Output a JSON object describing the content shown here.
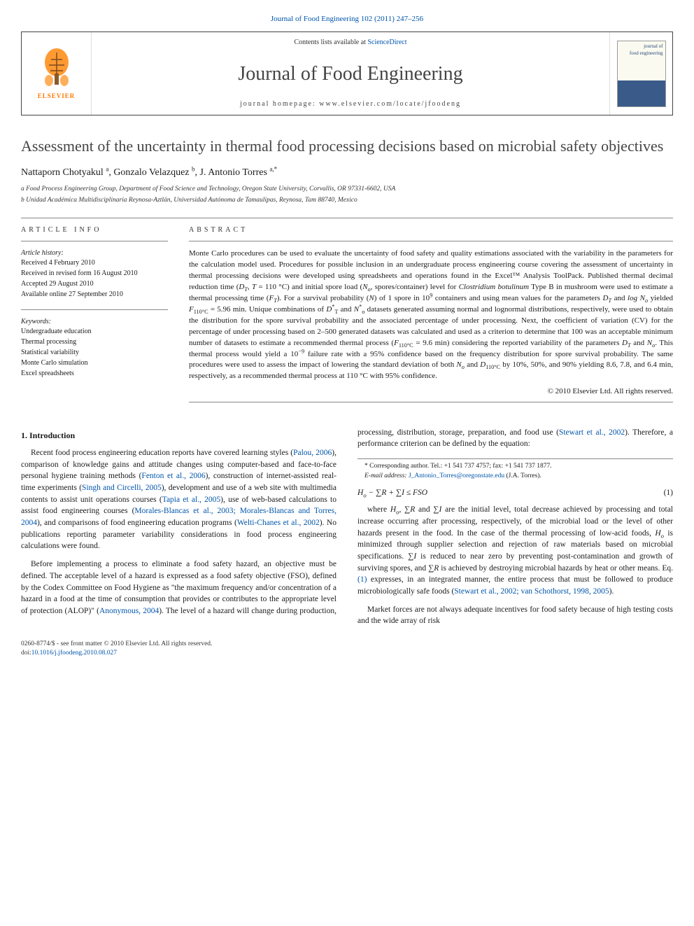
{
  "top_citation": "Journal of Food Engineering 102 (2011) 247–256",
  "header": {
    "contents_prefix": "Contents lists available at ",
    "contents_link": "ScienceDirect",
    "journal_name": "Journal of Food Engineering",
    "homepage_prefix": "journal homepage: ",
    "homepage_url": "www.elsevier.com/locate/jfoodeng",
    "publisher": "ELSEVIER",
    "cover_text": "journal of\nfood engineering"
  },
  "article": {
    "title": "Assessment of the uncertainty in thermal food processing decisions based on microbial safety objectives",
    "authors_html": "Nattaporn Chotyakul <sup>a</sup>, Gonzalo Velazquez <sup>b</sup>, J. Antonio Torres <sup>a,*</sup>",
    "affiliations": [
      "a Food Process Engineering Group, Department of Food Science and Technology, Oregon State University, Corvallis, OR 97331-6602, USA",
      "b Unidad Académica Multidisciplinaria Reynosa-Aztlán, Universidad Autónoma de Tamaulipas, Reynosa, Tam 88740, Mexico"
    ]
  },
  "info": {
    "heading": "article info",
    "history_label": "Article history:",
    "history": [
      "Received 4 February 2010",
      "Received in revised form 16 August 2010",
      "Accepted 29 August 2010",
      "Available online 27 September 2010"
    ],
    "keywords_label": "Keywords:",
    "keywords": [
      "Undergraduate education",
      "Thermal processing",
      "Statistical variability",
      "Monte Carlo simulation",
      "Excel spreadsheets"
    ]
  },
  "abstract": {
    "heading": "abstract",
    "text_html": "Monte Carlo procedures can be used to evaluate the uncertainty of food safety and quality estimations associated with the variability in the parameters for the calculation model used. Procedures for possible inclusion in an undergraduate process engineering course covering the assessment of uncertainty in thermal processing decisions were developed using spreadsheets and operations found in the Excel™ Analysis ToolPack. Published thermal decimal reduction time (<i>D<sub>T</sub></i>, <i>T</i> = 110 °C) and initial spore load (<i>N<sub>o</sub></i>, spores/container) level for <i>Clostridium botulinum</i> Type B in mushroom were used to estimate a thermal processing time (<i>F<sub>T</sub></i>). For a survival probability (<i>N</i>) of 1 spore in 10<sup>9</sup> containers and using mean values for the parameters <i>D<sub>T</sub></i> and <i>log N<sub>o</sub></i> yielded <i>F</i><sub>110°C</sub> = 5.96 min. Unique combinations of <i>D</i><sup>*</sup><sub>T</sub> and <i>N</i><sup>*</sup><sub>o</sub> datasets generated assuming normal and lognormal distributions, respectively, were used to obtain the distribution for the spore survival probability and the associated percentage of under processing. Next, the coefficient of variation (CV) for the percentage of under processing based on 2–500 generated datasets was calculated and used as a criterion to determine that 100 was an acceptable minimum number of datasets to estimate a recommended thermal process (<i>F</i><sub>110°C</sub> = 9.6 min) considering the reported variability of the parameters <i>D<sub>T</sub></i> and <i>N<sub>o</sub></i>. This thermal process would yield a 10<sup>−9</sup> failure rate with a 95% confidence based on the frequency distribution for spore survival probability. The same procedures were used to assess the impact of lowering the standard deviation of both <i>N<sub>o</sub></i> and <i>D</i><sub>110°C</sub> by 10%, 50%, and 90% yielding 8.6, 7.8, and 6.4 min, respectively, as a recommended thermal process at 110 °C with 95% confidence.",
    "copyright": "© 2010 Elsevier Ltd. All rights reserved."
  },
  "body": {
    "section1_heading": "1. Introduction",
    "p1_html": "Recent food process engineering education reports have covered learning styles (<a>Palou, 2006</a>), comparison of knowledge gains and attitude changes using computer-based and face-to-face personal hygiene training methods (<a>Fenton et al., 2006</a>), construction of internet-assisted real-time experiments (<a>Singh and Circelli, 2005</a>), development and use of a web site with multimedia contents to assist unit operations courses (<a>Tapia et al., 2005</a>), use of web-based calculations to assist food engineering courses (<a>Morales-Blancas et al., 2003; Morales-Blancas and Torres, 2004</a>), and comparisons of food engineering education programs (<a>Welti-Chanes et al., 2002</a>). No publications reporting parameter variability considerations in food process engineering calculations were found.",
    "p2_html": "Before implementing a process to eliminate a food safety hazard, an objective must be defined. The acceptable level of a hazard is expressed as a food safety objective (FSO), defined by the Codex Committee on Food Hygiene as \"the maximum frequency and/or concentration of a hazard in a food at the time of consumption that provides or contributes to the appropriate level of protection (ALOP)\" (<a>Anonymous, 2004</a>). The level of a hazard will change during production, processing, distribution, storage, preparation, and food use (<a>Stewart et al., 2002</a>). Therefore, a performance criterion can be defined by the equation:",
    "equation_html": "<i>H<sub>o</sub></i> − ∑<i>R</i> + ∑<i>I</i> ≤ <i>FSO</i>",
    "equation_num": "(1)",
    "p3_html": "where <i>H<sub>o</sub></i>, ∑<i>R</i> and ∑<i>I</i> are the initial level, total decrease achieved by processing and total increase occurring after processing, respectively, of the microbial load or the level of other hazards present in the food. In the case of the thermal processing of low-acid foods, <i>H<sub>o</sub></i> is minimized through supplier selection and rejection of raw materials based on microbial specifications. ∑<i>I</i> is reduced to near zero by preventing post-contamination and growth of surviving spores, and ∑<i>R</i> is achieved by destroying microbial hazards by heat or other means. Eq. <a>(1)</a> expresses, in an integrated manner, the entire process that must be followed to produce microbiologically safe foods (<a>Stewart et al., 2002; van Schothorst, 1998, 2005</a>).",
    "p4": "Market forces are not always adequate incentives for food safety because of high testing costs and the wide array of risk"
  },
  "footnote": {
    "corr_html": "* Corresponding author. Tel.: +1 541 737 4757; fax: +1 541 737 1877.",
    "email_label": "E-mail address: ",
    "email": "J_Antonio_Torres@oregonstate.edu",
    "email_suffix": " (J.A. Torres)."
  },
  "footer": {
    "left_line1": "0260-8774/$ - see front matter © 2010 Elsevier Ltd. All rights reserved.",
    "doi_prefix": "doi:",
    "doi": "10.1016/j.jfoodeng.2010.08.027"
  },
  "colors": {
    "link": "#0055aa",
    "elsevier_orange": "#ff7800",
    "text": "#1a1a1a",
    "rule": "#888888"
  },
  "typography": {
    "body_pt": 11.5,
    "title_pt": 22,
    "journal_name_pt": 28,
    "abstract_pt": 11,
    "info_pt": 10,
    "footnote_pt": 9.5
  }
}
